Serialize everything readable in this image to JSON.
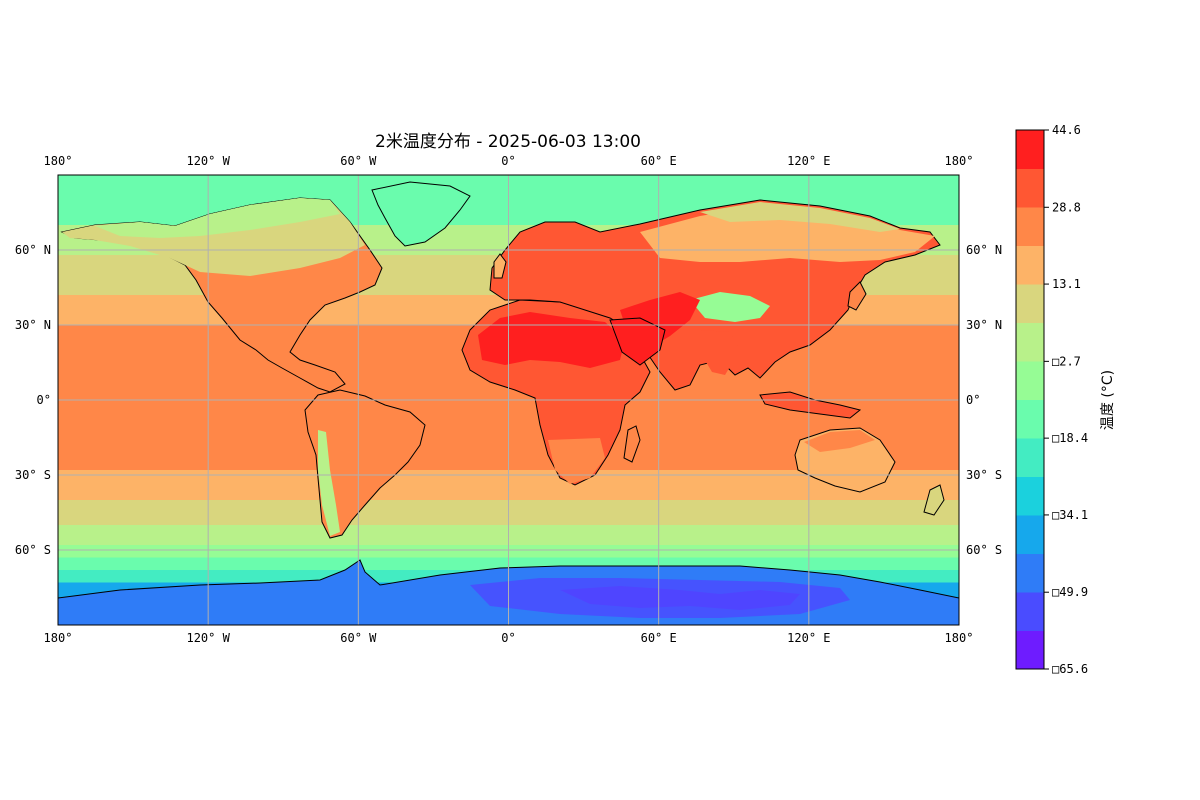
{
  "map": {
    "title": "2米温度分布 - 2025-06-03 13:00",
    "projection": "PlateCarree",
    "extent": {
      "lon": [
        -180,
        180
      ],
      "lat": [
        -90,
        90
      ]
    },
    "lon_ticks": [
      {
        "value": -180,
        "label": "180°"
      },
      {
        "value": -120,
        "label": "120° W"
      },
      {
        "value": -60,
        "label": "60° W"
      },
      {
        "value": 0,
        "label": "0°"
      },
      {
        "value": 60,
        "label": "60° E"
      },
      {
        "value": 120,
        "label": "120° E"
      },
      {
        "value": 180,
        "label": "180°"
      }
    ],
    "lat_ticks": [
      {
        "value": 60,
        "label": "60° N"
      },
      {
        "value": 30,
        "label": "30° N"
      },
      {
        "value": 0,
        "label": "0°"
      },
      {
        "value": -30,
        "label": "30° S"
      },
      {
        "value": -60,
        "label": "60° S"
      }
    ],
    "gridlines": true,
    "gridline_color": "#b0b0b0",
    "coastline_color": "#000000",
    "ocean_bands": [
      {
        "lat": [
          70,
          90
        ],
        "level": 6
      },
      {
        "lat": [
          58,
          70
        ],
        "level": 8
      },
      {
        "lat": [
          42,
          58
        ],
        "level": 9
      },
      {
        "lat": [
          30,
          42
        ],
        "level": 10
      },
      {
        "lat": [
          -28,
          30
        ],
        "level": 11
      },
      {
        "lat": [
          -40,
          -28
        ],
        "level": 10
      },
      {
        "lat": [
          -50,
          -40
        ],
        "level": 9
      },
      {
        "lat": [
          -58,
          -50
        ],
        "level": 8
      },
      {
        "lat": [
          -63,
          -58
        ],
        "level": 7
      },
      {
        "lat": [
          -68,
          -63
        ],
        "level": 6
      },
      {
        "lat": [
          -73,
          -68
        ],
        "level": 5
      },
      {
        "lat": [
          -80,
          -73
        ],
        "level": 3
      },
      {
        "lat": [
          -85,
          -80
        ],
        "level": 2
      },
      {
        "lat": [
          -90,
          -85
        ],
        "level": 1
      }
    ]
  },
  "colorbar": {
    "label": "温度 (°C)",
    "orientation": "vertical",
    "placement": "right",
    "range": [
      -65.6,
      44.6
    ],
    "colors": [
      "#6e1cff",
      "#4a4cff",
      "#2f7cf7",
      "#16a8ec",
      "#1bd1dd",
      "#43ecc2",
      "#6afcad",
      "#96fc95",
      "#b8f18a",
      "#d9d67e",
      "#fdb367",
      "#ff8748",
      "#ff5733",
      "#ff1f1f"
    ],
    "ticks": [
      {
        "value": -65.6,
        "label": "□65.6"
      },
      {
        "value": -49.9,
        "label": "□49.9"
      },
      {
        "value": -34.1,
        "label": "□34.1"
      },
      {
        "value": -18.4,
        "label": "□18.4"
      },
      {
        "value": -2.7,
        "label": "□2.7"
      },
      {
        "value": 13.1,
        "label": "13.1"
      },
      {
        "value": 28.8,
        "label": "28.8"
      },
      {
        "value": 44.6,
        "label": "44.6"
      }
    ]
  }
}
